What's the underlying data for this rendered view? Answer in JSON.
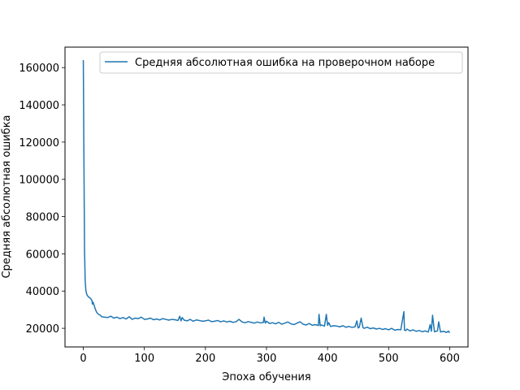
{
  "chart_data": {
    "type": "line",
    "title": "",
    "xlabel": "Эпоха обучения",
    "ylabel": "Средняя абсолютная ошибка",
    "xlim": [
      -30,
      630
    ],
    "ylim": [
      10000,
      171000
    ],
    "xticks": [
      0,
      100,
      200,
      300,
      400,
      500,
      600
    ],
    "yticks": [
      20000,
      40000,
      60000,
      80000,
      100000,
      120000,
      140000,
      160000
    ],
    "grid": false,
    "legend_position": "top-right",
    "series": [
      {
        "name": "Средняя абсолютная ошибка на проверочном наборе",
        "color": "#1f77b4",
        "x": [
          0,
          1,
          2,
          3,
          4,
          5,
          6,
          8,
          10,
          12,
          14,
          15,
          16,
          18,
          20,
          22,
          25,
          28,
          30,
          35,
          40,
          45,
          50,
          55,
          60,
          65,
          70,
          75,
          80,
          85,
          90,
          95,
          100,
          105,
          110,
          115,
          120,
          125,
          130,
          135,
          140,
          145,
          150,
          155,
          158,
          160,
          162,
          165,
          170,
          175,
          180,
          185,
          190,
          195,
          200,
          205,
          210,
          215,
          220,
          225,
          230,
          235,
          240,
          245,
          250,
          255,
          260,
          265,
          270,
          275,
          280,
          285,
          290,
          295,
          296,
          298,
          300,
          305,
          310,
          315,
          320,
          325,
          330,
          335,
          340,
          345,
          350,
          355,
          360,
          365,
          370,
          375,
          380,
          385,
          386,
          388,
          390,
          395,
          398,
          400,
          402,
          405,
          410,
          415,
          420,
          425,
          430,
          435,
          440,
          445,
          448,
          450,
          452,
          455,
          458,
          460,
          465,
          470,
          475,
          480,
          485,
          490,
          495,
          500,
          505,
          510,
          515,
          520,
          525,
          526,
          528,
          530,
          535,
          540,
          545,
          550,
          555,
          560,
          565,
          568,
          570,
          572,
          575,
          580,
          582,
          585,
          590,
          595,
          598,
          600
        ],
        "y": [
          164000,
          110000,
          62000,
          46000,
          41000,
          39000,
          38000,
          37000,
          36500,
          36000,
          35000,
          33000,
          34000,
          32000,
          30000,
          28500,
          27500,
          27000,
          26200,
          26000,
          25800,
          26500,
          25500,
          26000,
          25200,
          25800,
          25000,
          26200,
          24800,
          25500,
          25200,
          26000,
          24800,
          25000,
          25500,
          24600,
          25000,
          24500,
          25200,
          24800,
          24400,
          24800,
          24600,
          24200,
          26500,
          24000,
          25800,
          24400,
          24000,
          24800,
          23800,
          24500,
          24200,
          23800,
          24000,
          24400,
          23600,
          23800,
          24200,
          23500,
          24000,
          23400,
          23800,
          23200,
          23500,
          24800,
          23400,
          23000,
          23600,
          23200,
          22800,
          23400,
          22900,
          23200,
          26000,
          22800,
          23800,
          22600,
          23000,
          22400,
          23200,
          22200,
          22800,
          23400,
          22400,
          22000,
          22800,
          23500,
          22200,
          21800,
          22600,
          21600,
          22000,
          21500,
          27500,
          21400,
          21800,
          21200,
          27500,
          21600,
          23000,
          21000,
          21400,
          21200,
          20800,
          21400,
          20600,
          21000,
          20500,
          20800,
          24000,
          20200,
          20600,
          25500,
          20400,
          20000,
          20600,
          19800,
          20200,
          19600,
          20000,
          19400,
          19800,
          19200,
          20000,
          19000,
          19400,
          19200,
          29000,
          19000,
          18800,
          19600,
          18600,
          19200,
          18400,
          18800,
          18200,
          18600,
          18000,
          22000,
          18400,
          27000,
          18200,
          18600,
          23500,
          18000,
          18400,
          17800,
          18500,
          17600
        ]
      }
    ]
  }
}
